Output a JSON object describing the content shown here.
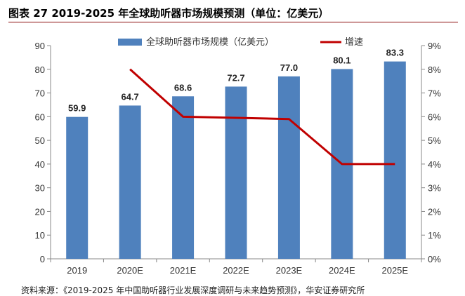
{
  "title": "图表 27 2019-2025 年全球助听器市场规模预测（单位：亿美元）",
  "source": "资料来源：《2019-2025 年中国助听器行业发展深度调研与未来趋势预测》，华安证券研究所",
  "colors": {
    "bar": "#4f81bd",
    "line": "#c00000",
    "axis": "#888888",
    "rule": "#8c0a0a"
  },
  "chart_data": {
    "type": "bar",
    "categories": [
      "2019",
      "2020E",
      "2021E",
      "2022E",
      "2023E",
      "2024E",
      "2025E"
    ],
    "series": [
      {
        "name": "全球助听器市场规模（亿美元）",
        "type": "bar",
        "axis": "left",
        "values": [
          59.9,
          64.7,
          68.6,
          72.7,
          77.0,
          80.1,
          83.3
        ],
        "labels": [
          "59.9",
          "64.7",
          "68.6",
          "72.7",
          "77.0",
          "80.1",
          "83.3"
        ]
      },
      {
        "name": "增速",
        "type": "line",
        "axis": "right",
        "values": [
          null,
          8.0,
          6.0,
          5.95,
          5.9,
          4.0,
          4.0
        ]
      }
    ],
    "y_left": {
      "min": 0,
      "max": 90,
      "step": 10,
      "ticks": [
        "0",
        "10",
        "20",
        "30",
        "40",
        "50",
        "60",
        "70",
        "80",
        "90"
      ]
    },
    "y_right": {
      "min": 0,
      "max": 9,
      "step": 1,
      "ticks": [
        "0%",
        "1%",
        "2%",
        "3%",
        "4%",
        "5%",
        "6%",
        "7%",
        "8%",
        "9%"
      ]
    },
    "legend_position": "top",
    "grid": false
  }
}
